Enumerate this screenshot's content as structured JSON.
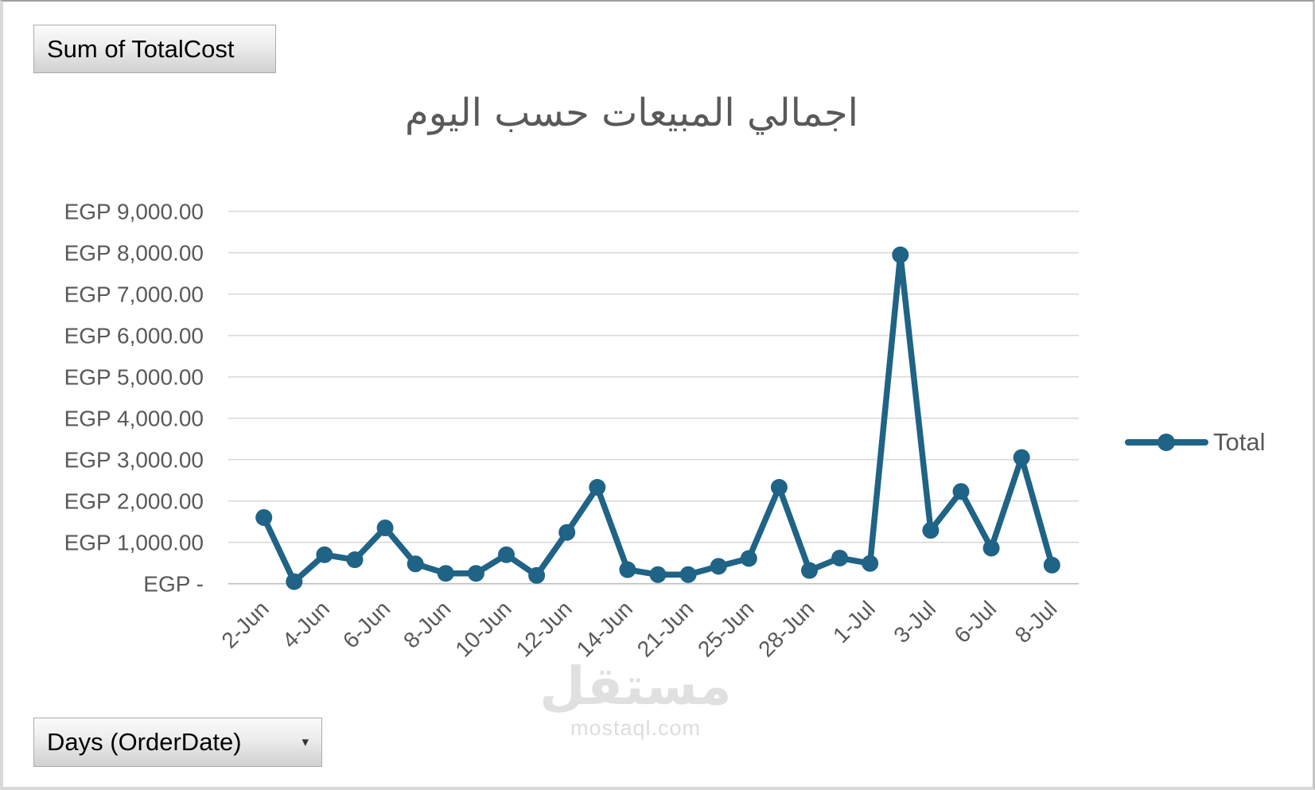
{
  "title": "اجمالي المبيعات حسب اليوم",
  "buttons": {
    "field": {
      "label": "Sum of TotalCost"
    },
    "axis": {
      "label": "Days (OrderDate)",
      "arrow": "▾"
    }
  },
  "legend": {
    "label": "Total",
    "position": "right"
  },
  "watermark": {
    "arabic": "مستقل",
    "domain": "mostaql.com"
  },
  "colors": {
    "series": "#1f6386",
    "text_gray": "#595959",
    "gridline": "#d9d9d9",
    "axis_line": "#bfbfbf",
    "watermark": "#e0e0e0"
  },
  "chart_data": {
    "type": "line",
    "title": "اجمالي المبيعات حسب اليوم",
    "categories": [
      "2-Jun",
      "",
      "4-Jun",
      "",
      "6-Jun",
      "",
      "8-Jun",
      "",
      "10-Jun",
      "",
      "12-Jun",
      "",
      "14-Jun",
      "",
      "21-Jun",
      "",
      "25-Jun",
      "",
      "28-Jun",
      "",
      "1-Jul",
      "",
      "3-Jul",
      "",
      "6-Jul",
      "",
      "8-Jul"
    ],
    "series": [
      {
        "name": "Total",
        "values": [
          1600,
          50,
          700,
          580,
          1350,
          480,
          250,
          250,
          700,
          200,
          1240,
          2330,
          340,
          220,
          220,
          420,
          610,
          2330,
          320,
          620,
          490,
          7950,
          1290,
          2230,
          860,
          3050,
          450
        ]
      }
    ],
    "x_tick_labels_visible": [
      "2-Jun",
      "4-Jun",
      "6-Jun",
      "8-Jun",
      "10-Jun",
      "12-Jun",
      "14-Jun",
      "21-Jun",
      "25-Jun",
      "28-Jun",
      "1-Jul",
      "3-Jul",
      "6-Jul",
      "8-Jul"
    ],
    "y_axis": {
      "currency": "EGP",
      "min": 0,
      "max": 9000,
      "step": 1000,
      "tick_labels": [
        "EGP -",
        "EGP 1,000.00",
        "EGP 2,000.00",
        "EGP 3,000.00",
        "EGP 4,000.00",
        "EGP 5,000.00",
        "EGP 6,000.00",
        "EGP 7,000.00",
        "EGP 8,000.00",
        "EGP 9,000.00"
      ]
    },
    "grid": true,
    "legend_position": "right"
  }
}
